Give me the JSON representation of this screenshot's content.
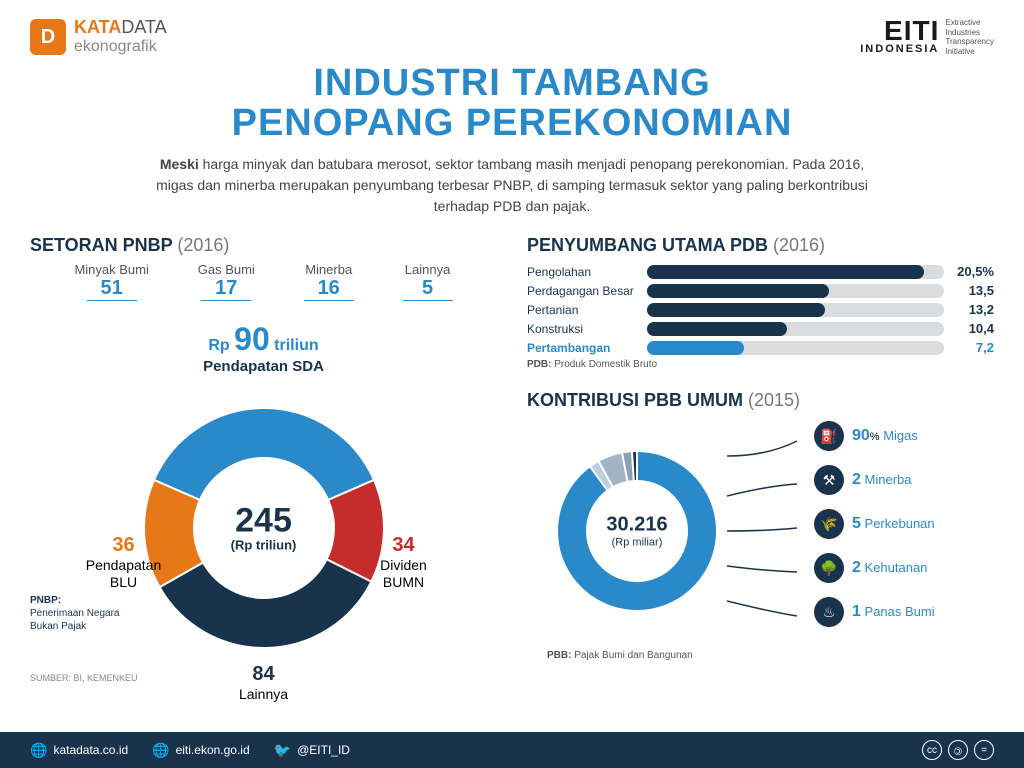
{
  "header": {
    "left_badge": "D",
    "brand1a": "KATA",
    "brand1b": "DATA",
    "brand2": "ekonografik",
    "right_main": "EITI",
    "right_sub": "INDONESIA",
    "right_desc_l1": "Extractive",
    "right_desc_l2": "Industries",
    "right_desc_l3": "Transparency",
    "right_desc_l4": "Initiative"
  },
  "title": {
    "line1": "INDUSTRI TAMBANG",
    "line2": "PENOPANG PEREKONOMIAN",
    "subtitle_bold": "Meski",
    "subtitle_rest": " harga minyak dan batubara merosot, sektor tambang masih menjadi penopang perekonomian. Pada 2016, migas dan minerba merupakan penyumbang terbesar PNBP, di samping termasuk sektor yang paling berkontribusi terhadap PDB dan pajak."
  },
  "pnbp": {
    "heading": "SETORAN PNBP",
    "year": "(2016)",
    "sources": [
      {
        "label": "Minyak Bumi",
        "value": "51"
      },
      {
        "label": "Gas Bumi",
        "value": "17"
      },
      {
        "label": "Minerba",
        "value": "16"
      },
      {
        "label": "Lainnya",
        "value": "5"
      }
    ],
    "rp_prefix": "Rp ",
    "rp_value": "90",
    "rp_suffix": " triliun",
    "rp_sub": "Pendapatan SDA",
    "center_value": "245",
    "center_unit": "(Rp triliun)",
    "segments": [
      {
        "label": "Pendapatan SDA",
        "value": 90,
        "color": "#2a8ac9"
      },
      {
        "label": "Dividen BUMN",
        "value": 34,
        "color": "#c72c2c",
        "lv": "34",
        "ll": "Dividen\nBUMN"
      },
      {
        "label": "Lainnya",
        "value": 84,
        "color": "#19334d",
        "lv": "84",
        "ll": "Lainnya"
      },
      {
        "label": "Pendapatan BLU",
        "value": 36,
        "color": "#e67817",
        "lv": "36",
        "ll": "Pendapatan\nBLU"
      }
    ],
    "note_head": "PNBP:",
    "note_body": "Penerimaan Negara\nBukan Pajak",
    "source": "SUMBER: BI, KEMENKEU"
  },
  "pdb": {
    "heading": "PENYUMBANG UTAMA PDB",
    "year": "(2016)",
    "max_scale": 22,
    "bars": [
      {
        "label": "Pengolahan",
        "value": 20.5,
        "display": "20,5%",
        "highlight": false
      },
      {
        "label": "Perdagangan Besar",
        "value": 13.5,
        "display": "13,5",
        "highlight": false
      },
      {
        "label": "Pertanian",
        "value": 13.2,
        "display": "13,2",
        "highlight": false
      },
      {
        "label": "Konstruksi",
        "value": 10.4,
        "display": "10,4",
        "highlight": false
      },
      {
        "label": "Pertambangan",
        "value": 7.2,
        "display": "7,2",
        "highlight": true
      }
    ],
    "note_head": "PDB:",
    "note_body": " Produk Domestik Bruto"
  },
  "pbb": {
    "heading": "KONTRIBUSI PBB UMUM",
    "year": "(2015)",
    "center_value": "30.216",
    "center_unit": "(Rp miliar)",
    "donut_segments": [
      {
        "value": 90,
        "color": "#2a8ac9"
      },
      {
        "value": 2,
        "color": "#b9cfe0"
      },
      {
        "value": 5,
        "color": "#a0b4c4"
      },
      {
        "value": 2,
        "color": "#8aa0b3"
      },
      {
        "value": 1,
        "color": "#19334d"
      }
    ],
    "items": [
      {
        "value": "90",
        "pct": "%",
        "name": "Migas",
        "icon": "⛽"
      },
      {
        "value": "2",
        "pct": "",
        "name": "Minerba",
        "icon": "⚒"
      },
      {
        "value": "5",
        "pct": "",
        "name": "Perkebunan",
        "icon": "🌾"
      },
      {
        "value": "2",
        "pct": "",
        "name": "Kehutanan",
        "icon": "🌳"
      },
      {
        "value": "1",
        "pct": "",
        "name": "Panas Bumi",
        "icon": "♨"
      }
    ],
    "note_head": "PBB:",
    "note_body": " Pajak Bumi dan Bangunan"
  },
  "footer": {
    "links": [
      {
        "icon": "🌐",
        "text": "katadata.co.id"
      },
      {
        "icon": "🌐",
        "text": "eiti.ekon.go.id"
      },
      {
        "icon": "🐦",
        "text": "@EITI_ID"
      }
    ],
    "cc": [
      "cc",
      "🄯",
      "="
    ]
  },
  "colors": {
    "primary_blue": "#2a8ac9",
    "dark_navy": "#19334d",
    "orange": "#e67817",
    "red": "#c72c2c",
    "track_gray": "#d9dde0",
    "bg": "#ffffff"
  }
}
